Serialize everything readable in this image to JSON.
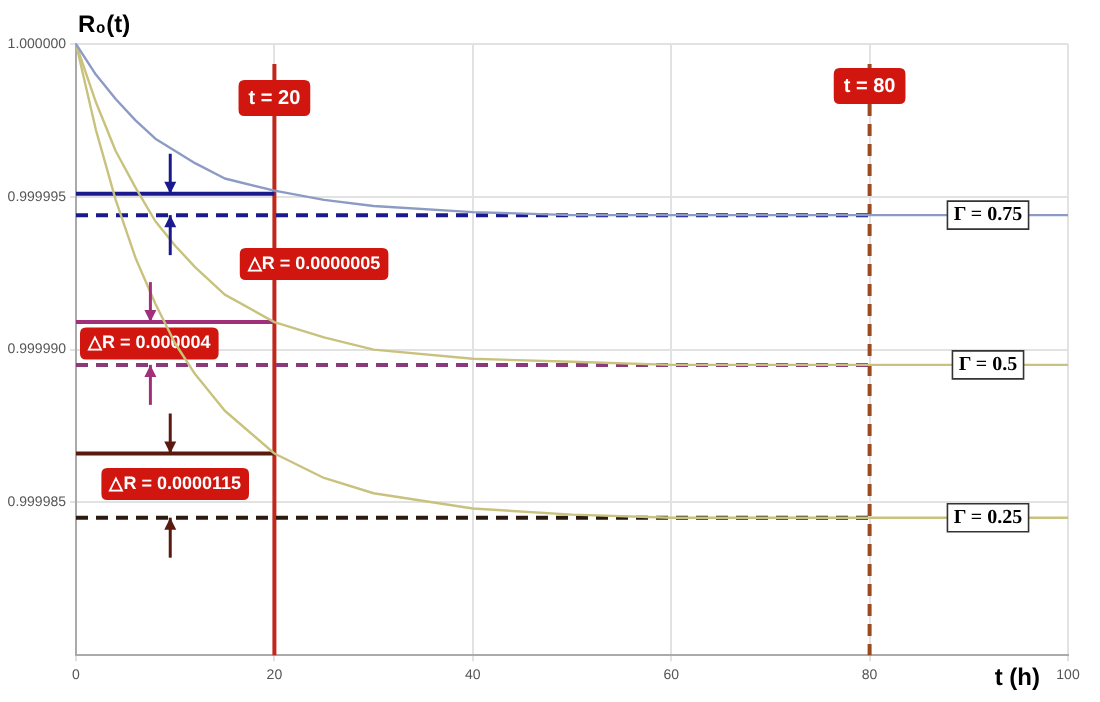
{
  "chart_data": {
    "type": "line",
    "ylabel": "R₀(t)",
    "xlabel": "t (h)",
    "xlim": [
      0,
      100
    ],
    "xticks": [
      0,
      20,
      40,
      60,
      80,
      100
    ],
    "ylim": [
      0.99998,
      1.0
    ],
    "yticks": [
      {
        "value": 1.0,
        "label": "1.000000"
      },
      {
        "value": 0.999995,
        "label": "0.999995"
      },
      {
        "value": 0.99999,
        "label": "0.999990"
      },
      {
        "value": 0.999985,
        "label": "0.999985"
      }
    ],
    "grid": true,
    "legend": false,
    "marker": "none",
    "series": [
      {
        "name": "Γ = 0.75",
        "color": "#8b9bc4",
        "x": [
          0,
          2,
          4,
          6,
          8,
          10,
          12,
          15,
          20,
          25,
          30,
          40,
          50,
          60,
          80,
          100
        ],
        "values": [
          1.0,
          0.999999,
          0.9999982,
          0.9999975,
          0.9999969,
          0.9999965,
          0.9999961,
          0.9999956,
          0.9999952,
          0.9999949,
          0.9999947,
          0.9999945,
          0.9999944,
          0.9999944,
          0.9999944,
          0.9999944
        ]
      },
      {
        "name": "Γ = 0.5",
        "color": "#c9c27e",
        "x": [
          0,
          2,
          4,
          6,
          8,
          10,
          12,
          15,
          20,
          25,
          30,
          40,
          50,
          60,
          80,
          100
        ],
        "values": [
          1.0,
          0.9999981,
          0.9999965,
          0.9999953,
          0.9999942,
          0.9999934,
          0.9999927,
          0.9999918,
          0.9999909,
          0.9999904,
          0.99999,
          0.9999897,
          0.9999896,
          0.9999895,
          0.9999895,
          0.9999895
        ]
      },
      {
        "name": "Γ = 0.25",
        "color": "#c9c27e",
        "x": [
          0,
          2,
          4,
          6,
          8,
          10,
          12,
          15,
          20,
          25,
          30,
          40,
          50,
          60,
          80,
          100
        ],
        "values": [
          1.0,
          0.9999972,
          0.9999949,
          0.999993,
          0.9999915,
          0.9999902,
          0.9999892,
          0.999988,
          0.9999866,
          0.9999858,
          0.9999853,
          0.9999848,
          0.9999846,
          0.9999845,
          0.9999845,
          0.9999845
        ]
      },
      {
        "color": "#1a1a8c",
        "line_style": "solid",
        "x": [
          0,
          20
        ],
        "values": [
          0.9999951,
          0.9999951
        ]
      },
      {
        "color": "#1a1a8c",
        "line_style": "dashed",
        "x": [
          0,
          80
        ],
        "values": [
          0.9999944,
          0.9999944
        ]
      },
      {
        "color": "#a0307a",
        "line_style": "solid",
        "x": [
          0,
          20
        ],
        "values": [
          0.9999909,
          0.9999909
        ]
      },
      {
        "color": "#8a3a7a",
        "line_style": "dashed",
        "x": [
          0,
          80
        ],
        "values": [
          0.9999895,
          0.9999895
        ]
      },
      {
        "color": "#5a1a10",
        "line_style": "solid",
        "x": [
          0,
          20
        ],
        "values": [
          0.9999866,
          0.9999866
        ]
      },
      {
        "color": "#2a1a10",
        "line_style": "dashed",
        "x": [
          0,
          80
        ],
        "values": [
          0.9999845,
          0.9999845
        ]
      }
    ],
    "ref_lines": [
      {
        "axis": "x",
        "value": 20,
        "label": "t = 20",
        "color": "#c0281c",
        "line_style": "solid"
      },
      {
        "axis": "x",
        "value": 80,
        "label": "t = 80",
        "color": "#9a4a20",
        "line_style": "dashed"
      }
    ],
    "annotations": [
      "△R = 0.0000005",
      "△R = 0.000004",
      "△R = 0.0000115"
    ]
  }
}
